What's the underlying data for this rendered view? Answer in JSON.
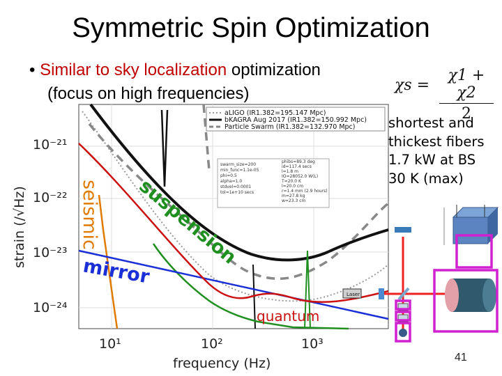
{
  "slide": {
    "title": "Symmetric Spin Optimization",
    "bullet": {
      "marker": "•",
      "highlight": "Similar to sky localization",
      "rest_line1": " optimization",
      "line2": "(focus on high frequencies)"
    },
    "formula": {
      "lhs": "χs =",
      "numerator": "χ1 + χ2",
      "denominator": "2"
    },
    "notes": [
      "shortest and",
      "thickest fibers",
      "1.7 kW at BS",
      "30 K (max)"
    ],
    "page_number": "41"
  },
  "figure": {
    "y_axis_label": "strain (/√Hz)",
    "x_axis_label": "frequency (Hz)",
    "y_ticks": [
      "10⁻²¹",
      "10⁻²²",
      "10⁻²³",
      "10⁻²⁴"
    ],
    "x_ticks": [
      "10¹",
      "10²",
      "10³"
    ],
    "legend": [
      "aLIGO (IR1.382=195.147 Mpc)",
      "bKAGRA Aug 2017 (IR1.382=150.992 Mpc)",
      "Particle Swarm (IR1.382=132.970 Mpc)"
    ],
    "param_box_left": [
      "swarm_size=200",
      "min_func=1.1e-05",
      "phi=0.5",
      "alpha=1.0",
      "stdvel=0.0001",
      "tol=1e+10 secs"
    ],
    "param_box_right": [
      "phibs=89.3 deg",
      "id=117.4 secs",
      "l=1.8 m",
      "IO=28052.0 W(L)",
      "T=20.0 K",
      "l=20.0 cm",
      "r=1.4 mm (2.9 hours)",
      "m=27.8 kg",
      "w=23.3 cm"
    ],
    "curve_labels": {
      "seismic": "seismic",
      "suspension": "suspension",
      "mirror": "mirror",
      "quantum": "quantum"
    },
    "laser_label": "Laser",
    "colors": {
      "ligo": "#9a9a9a",
      "kagra": "#111111",
      "swarm": "#888888",
      "seismic": "#e07b00",
      "suspension": "#1f8f1f",
      "mirror": "#1a2fd6",
      "quantum": "#cc1111",
      "highlight": "#d020d0"
    }
  }
}
